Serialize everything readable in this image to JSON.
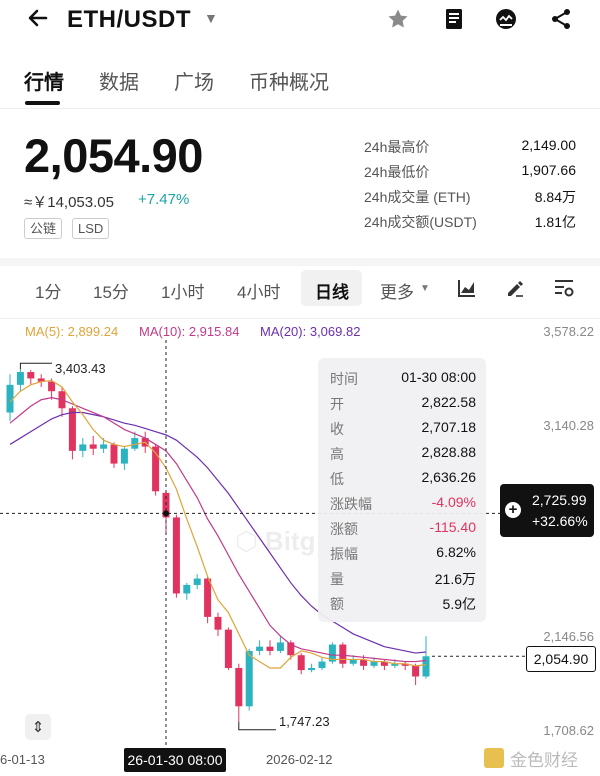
{
  "header": {
    "pair": "ETH/USDT",
    "icons": [
      "back-arrow-icon",
      "caret-down-icon",
      "star-icon",
      "notes-icon",
      "chart-face-icon",
      "share-icon"
    ]
  },
  "tabs": [
    {
      "label": "行情",
      "active": true
    },
    {
      "label": "数据",
      "active": false
    },
    {
      "label": "广场",
      "active": false
    },
    {
      "label": "币种概况",
      "active": false
    }
  ],
  "price": {
    "last": "2,054.90",
    "cny": "≈￥14,053.05",
    "change": "+7.47%",
    "tags": [
      "公链",
      "LSD"
    ]
  },
  "stats": [
    {
      "label": "24h最高价",
      "value": "2,149.00"
    },
    {
      "label": "24h最低价",
      "value": "1,907.66"
    },
    {
      "label": "24h成交量 (ETH)",
      "value": "8.84万"
    },
    {
      "label": "24h成交额(USDT)",
      "value": "1.81亿"
    }
  ],
  "intervals": [
    {
      "label": "1分",
      "active": false
    },
    {
      "label": "15分",
      "active": false
    },
    {
      "label": "1小时",
      "active": false
    },
    {
      "label": "4小时",
      "active": false
    },
    {
      "label": "日线",
      "active": true
    },
    {
      "label": "更多",
      "active": false
    }
  ],
  "ma": {
    "ma5": "MA(5): 2,899.24",
    "ma10": "MA(10): 2,915.84",
    "ma20": "MA(20): 3,069.82",
    "colors": {
      "ma5": "#e0a43a",
      "ma10": "#c13a8a",
      "ma20": "#6b2fb0"
    }
  },
  "yaxis": [
    "3,578.22",
    "3,140.28",
    "2,146.56",
    "1,708.62"
  ],
  "xaxis": [
    "6-01-13",
    "2026-02-12"
  ],
  "annotations": {
    "high": "3,403.43",
    "low": "1,747.23"
  },
  "tooltip": [
    {
      "k": "时间",
      "v": "01-30 08:00"
    },
    {
      "k": "开",
      "v": "2,822.58"
    },
    {
      "k": "收",
      "v": "2,707.18"
    },
    {
      "k": "高",
      "v": "2,828.88"
    },
    {
      "k": "低",
      "v": "2,636.26"
    },
    {
      "k": "涨跌幅",
      "v": "-4.09%",
      "red": true
    },
    {
      "k": "涨额",
      "v": "-115.40",
      "red": true
    },
    {
      "k": "振幅",
      "v": "6.82%"
    },
    {
      "k": "量",
      "v": "21.6万"
    },
    {
      "k": "额",
      "v": "5.9亿"
    }
  ],
  "crosshair": {
    "price": "2,725.99",
    "pct": "+32.66%",
    "time": "26-01-30 08:00"
  },
  "last_price_label": "2,054.90",
  "watermark": "金色财经",
  "colors": {
    "up": "#2bb3c0",
    "down": "#e0335f",
    "accent": "#1ea3a3"
  },
  "chart_data": {
    "type": "candlestick",
    "ylim": [
      1708.62,
      3578.22
    ],
    "candles": [
      {
        "o": 3200,
        "c": 3330,
        "h": 3380,
        "l": 3160
      },
      {
        "o": 3330,
        "c": 3390,
        "h": 3403,
        "l": 3300
      },
      {
        "o": 3390,
        "c": 3360,
        "h": 3400,
        "l": 3330
      },
      {
        "o": 3360,
        "c": 3345,
        "h": 3380,
        "l": 3320
      },
      {
        "o": 3345,
        "c": 3300,
        "h": 3360,
        "l": 3260
      },
      {
        "o": 3300,
        "c": 3220,
        "h": 3320,
        "l": 3180
      },
      {
        "o": 3220,
        "c": 3020,
        "h": 3230,
        "l": 2980
      },
      {
        "o": 3020,
        "c": 3050,
        "h": 3080,
        "l": 2990
      },
      {
        "o": 3050,
        "c": 3030,
        "h": 3090,
        "l": 3000
      },
      {
        "o": 3030,
        "c": 3050,
        "h": 3080,
        "l": 3010
      },
      {
        "o": 3050,
        "c": 2960,
        "h": 3060,
        "l": 2940
      },
      {
        "o": 2960,
        "c": 3030,
        "h": 3040,
        "l": 2930
      },
      {
        "o": 3030,
        "c": 3080,
        "h": 3110,
        "l": 3020
      },
      {
        "o": 3080,
        "c": 3040,
        "h": 3110,
        "l": 3010
      },
      {
        "o": 3040,
        "c": 2830,
        "h": 3050,
        "l": 2810
      },
      {
        "o": 2822.58,
        "c": 2707.18,
        "h": 2828.88,
        "l": 2636.26
      },
      {
        "o": 2707,
        "c": 2350,
        "h": 2720,
        "l": 2330
      },
      {
        "o": 2350,
        "c": 2390,
        "h": 2400,
        "l": 2320
      },
      {
        "o": 2390,
        "c": 2420,
        "h": 2440,
        "l": 2370
      },
      {
        "o": 2420,
        "c": 2240,
        "h": 2430,
        "l": 2210
      },
      {
        "o": 2240,
        "c": 2180,
        "h": 2260,
        "l": 2150
      },
      {
        "o": 2180,
        "c": 2000,
        "h": 2190,
        "l": 1990
      },
      {
        "o": 2000,
        "c": 1820,
        "h": 2020,
        "l": 1747.23
      },
      {
        "o": 1820,
        "c": 2080,
        "h": 2090,
        "l": 1800
      },
      {
        "o": 2080,
        "c": 2100,
        "h": 2130,
        "l": 2060
      },
      {
        "o": 2100,
        "c": 2080,
        "h": 2130,
        "l": 2060
      },
      {
        "o": 2080,
        "c": 2120,
        "h": 2150,
        "l": 2070
      },
      {
        "o": 2120,
        "c": 2060,
        "h": 2130,
        "l": 2040
      },
      {
        "o": 2060,
        "c": 1990,
        "h": 2070,
        "l": 1970
      },
      {
        "o": 1990,
        "c": 2000,
        "h": 2020,
        "l": 1980
      },
      {
        "o": 2000,
        "c": 2030,
        "h": 2050,
        "l": 1990
      },
      {
        "o": 2030,
        "c": 2110,
        "h": 2120,
        "l": 2020
      },
      {
        "o": 2110,
        "c": 2020,
        "h": 2120,
        "l": 2000
      },
      {
        "o": 2020,
        "c": 2040,
        "h": 2060,
        "l": 2010
      },
      {
        "o": 2040,
        "c": 2010,
        "h": 2060,
        "l": 1990
      },
      {
        "o": 2010,
        "c": 2030,
        "h": 2050,
        "l": 2000
      },
      {
        "o": 2030,
        "c": 2010,
        "h": 2040,
        "l": 1990
      },
      {
        "o": 2010,
        "c": 2020,
        "h": 2040,
        "l": 2000
      },
      {
        "o": 2020,
        "c": 2010,
        "h": 2030,
        "l": 1990
      },
      {
        "o": 2010,
        "c": 1960,
        "h": 2020,
        "l": 1920
      },
      {
        "o": 1960,
        "c": 2054.9,
        "h": 2149,
        "l": 1950
      }
    ],
    "ma5": [
      3250,
      3300,
      3330,
      3345,
      3350,
      3320,
      3250,
      3190,
      3120,
      3070,
      3050,
      3040,
      3050,
      3060,
      3010,
      2940,
      2840,
      2700,
      2570,
      2430,
      2320,
      2260,
      2160,
      2060,
      2030,
      2000,
      2000,
      2050,
      2080,
      2070,
      2050,
      2040,
      2040,
      2040,
      2040,
      2030,
      2030,
      2020,
      2020,
      2010,
      2015
    ],
    "ma10": [
      3150,
      3190,
      3230,
      3260,
      3270,
      3260,
      3240,
      3220,
      3200,
      3180,
      3150,
      3120,
      3100,
      3080,
      3050,
      3020,
      2960,
      2880,
      2800,
      2700,
      2620,
      2530,
      2440,
      2360,
      2280,
      2200,
      2150,
      2110,
      2090,
      2080,
      2070,
      2060,
      2060,
      2055,
      2050,
      2045,
      2040,
      2035,
      2030,
      2030,
      2035
    ],
    "ma20": [
      3050,
      3080,
      3110,
      3140,
      3170,
      3190,
      3200,
      3200,
      3190,
      3180,
      3165,
      3150,
      3140,
      3125,
      3110,
      3095,
      3070,
      3030,
      2990,
      2940,
      2880,
      2820,
      2750,
      2680,
      2610,
      2540,
      2470,
      2400,
      2340,
      2290,
      2250,
      2220,
      2190,
      2160,
      2140,
      2120,
      2100,
      2090,
      2080,
      2070,
      2075
    ]
  }
}
